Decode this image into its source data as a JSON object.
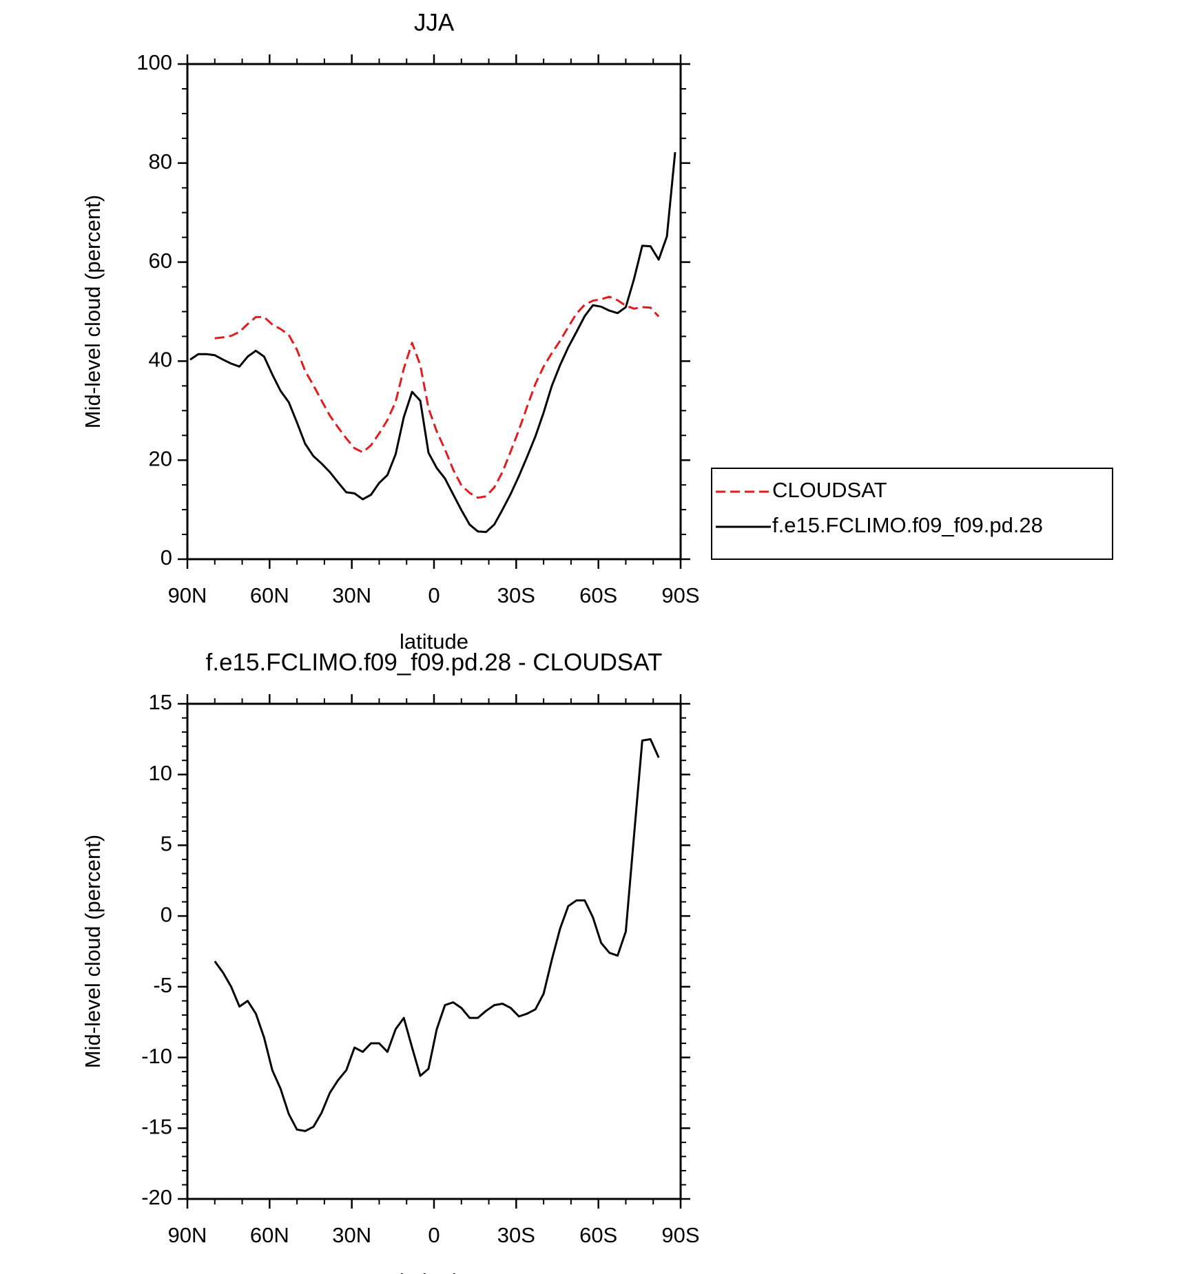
{
  "chart_data": [
    {
      "type": "line",
      "title": "JJA",
      "xlabel": "latitude",
      "ylabel": "Mid-level cloud (percent)",
      "x": [
        89,
        86,
        83,
        80,
        77,
        74,
        71,
        68,
        65,
        62,
        59,
        56,
        53,
        50,
        47,
        44,
        41,
        38,
        35,
        32,
        29,
        26,
        23,
        20,
        17,
        14,
        11,
        8,
        5,
        2,
        -1,
        -4,
        -7,
        -10,
        -13,
        -16,
        -19,
        -22,
        -25,
        -28,
        -31,
        -34,
        -37,
        -40,
        -43,
        -46,
        -49,
        -52,
        -55,
        -58,
        -61,
        -64,
        -67,
        -70,
        -73,
        -76,
        -79,
        -82,
        -85,
        -88
      ],
      "series": [
        {
          "name": "CLOUDSAT",
          "color": "#e41a1c",
          "dash": true,
          "values": [
            null,
            null,
            null,
            44.6,
            44.8,
            45.1,
            45.9,
            47.5,
            48.9,
            48.9,
            47.4,
            46.5,
            45.3,
            42.3,
            38.0,
            35.1,
            32.0,
            29.0,
            26.6,
            24.4,
            22.4,
            21.6,
            23.0,
            25.4,
            28.1,
            31.8,
            38.5,
            43.7,
            39.2,
            30.5,
            25.8,
            22.2,
            18.1,
            14.9,
            13.4,
            12.4,
            12.7,
            14.5,
            17.6,
            21.8,
            26.1,
            30.8,
            35.4,
            38.9,
            41.6,
            44.1,
            46.9,
            49.6,
            51.4,
            52.2,
            52.5,
            53.0,
            52.3,
            51.2,
            50.6,
            50.9,
            50.8,
            49.0,
            null,
            null
          ]
        },
        {
          "name": "f.e15.FCLIMO.f09_f09.pd.28",
          "color": "#000000",
          "dash": false,
          "values": [
            40.3,
            41.4,
            41.4,
            41.2,
            40.3,
            39.5,
            38.9,
            40.9,
            42.1,
            40.9,
            37.3,
            34.0,
            31.7,
            27.6,
            23.3,
            20.8,
            19.3,
            17.6,
            15.5,
            13.5,
            13.3,
            12.1,
            13.0,
            15.4,
            17.0,
            21.2,
            28.7,
            33.8,
            32.0,
            21.5,
            18.4,
            16.3,
            13.1,
            9.9,
            7.0,
            5.6,
            5.5,
            7.0,
            10.0,
            13.2,
            16.8,
            20.7,
            24.8,
            29.6,
            35.0,
            39.2,
            42.8,
            45.9,
            49.1,
            51.3,
            51.0,
            50.2,
            49.7,
            50.9,
            56.6,
            63.3,
            63.2,
            60.5,
            65.2,
            82.2
          ]
        }
      ],
      "xlim": [
        90,
        -90
      ],
      "xticks": [
        {
          "value": 90,
          "label": "90N"
        },
        {
          "value": 60,
          "label": "60N"
        },
        {
          "value": 30,
          "label": "30N"
        },
        0,
        {
          "value": -30,
          "label": "30S"
        },
        {
          "value": -60,
          "label": "60S"
        },
        {
          "value": -90,
          "label": "90S"
        }
      ],
      "xminorticks": [
        80,
        70,
        50,
        40,
        20,
        10,
        -10,
        -20,
        -40,
        -50,
        -70,
        -80
      ],
      "ylim": [
        0,
        100
      ],
      "yticks": [
        0,
        20,
        40,
        60,
        80,
        100
      ],
      "yminorticks": [
        5,
        10,
        15,
        25,
        30,
        35,
        45,
        50,
        55,
        65,
        70,
        75,
        85,
        90,
        95
      ],
      "legend": "outside-right"
    },
    {
      "type": "line",
      "title": "f.e15.FCLIMO.f09_f09.pd.28 - CLOUDSAT",
      "xlabel": "latitude",
      "ylabel": "Mid-level cloud (percent)",
      "x": [
        89,
        86,
        83,
        80,
        77,
        74,
        71,
        68,
        65,
        62,
        59,
        56,
        53,
        50,
        47,
        44,
        41,
        38,
        35,
        32,
        29,
        26,
        23,
        20,
        17,
        14,
        11,
        8,
        5,
        2,
        -1,
        -4,
        -7,
        -10,
        -13,
        -16,
        -19,
        -22,
        -25,
        -28,
        -31,
        -34,
        -37,
        -40,
        -43,
        -46,
        -49,
        -52,
        -55,
        -58,
        -61,
        -64,
        -67,
        -70,
        -73,
        -76,
        -79,
        -82,
        -85,
        -88
      ],
      "series": [
        {
          "name": "f.e15.FCLIMO.f09_f09.pd.28 - CLOUDSAT",
          "color": "#000000",
          "dash": false,
          "values": [
            null,
            null,
            null,
            -3.2,
            -4.0,
            -5.0,
            -6.4,
            -6.0,
            -6.9,
            -8.6,
            -10.9,
            -12.2,
            -14.0,
            -15.1,
            -15.2,
            -14.9,
            -13.9,
            -12.5,
            -11.6,
            -10.9,
            -9.3,
            -9.6,
            -9.0,
            -9.0,
            -9.6,
            -8.0,
            -7.2,
            -9.3,
            -11.3,
            -10.8,
            -8.0,
            -6.3,
            -6.1,
            -6.5,
            -7.2,
            -7.2,
            -6.7,
            -6.3,
            -6.2,
            -6.5,
            -7.1,
            -6.9,
            -6.6,
            -5.5,
            -3.1,
            -0.9,
            0.7,
            1.1,
            1.1,
            -0.1,
            -1.9,
            -2.6,
            -2.8,
            -1.1,
            5.7,
            12.4,
            12.5,
            11.2,
            null,
            null
          ]
        }
      ],
      "xlim": [
        90,
        -90
      ],
      "xticks": [
        {
          "value": 90,
          "label": "90N"
        },
        {
          "value": 60,
          "label": "60N"
        },
        {
          "value": 30,
          "label": "30N"
        },
        0,
        {
          "value": -30,
          "label": "30S"
        },
        {
          "value": -60,
          "label": "60S"
        },
        {
          "value": -90,
          "label": "90S"
        }
      ],
      "xminorticks": [
        80,
        70,
        50,
        40,
        20,
        10,
        -10,
        -20,
        -40,
        -50,
        -70,
        -80
      ],
      "ylim": [
        -20,
        15
      ],
      "yticks": [
        -20,
        -15,
        -10,
        -5,
        0,
        5,
        10,
        15
      ],
      "yminorticks": [
        -19,
        -18,
        -17,
        -16,
        -14,
        -13,
        -12,
        -11,
        -9,
        -8,
        -7,
        -6,
        -4,
        -3,
        -2,
        -1,
        1,
        2,
        3,
        4,
        6,
        7,
        8,
        9,
        11,
        12,
        13,
        14
      ]
    }
  ]
}
